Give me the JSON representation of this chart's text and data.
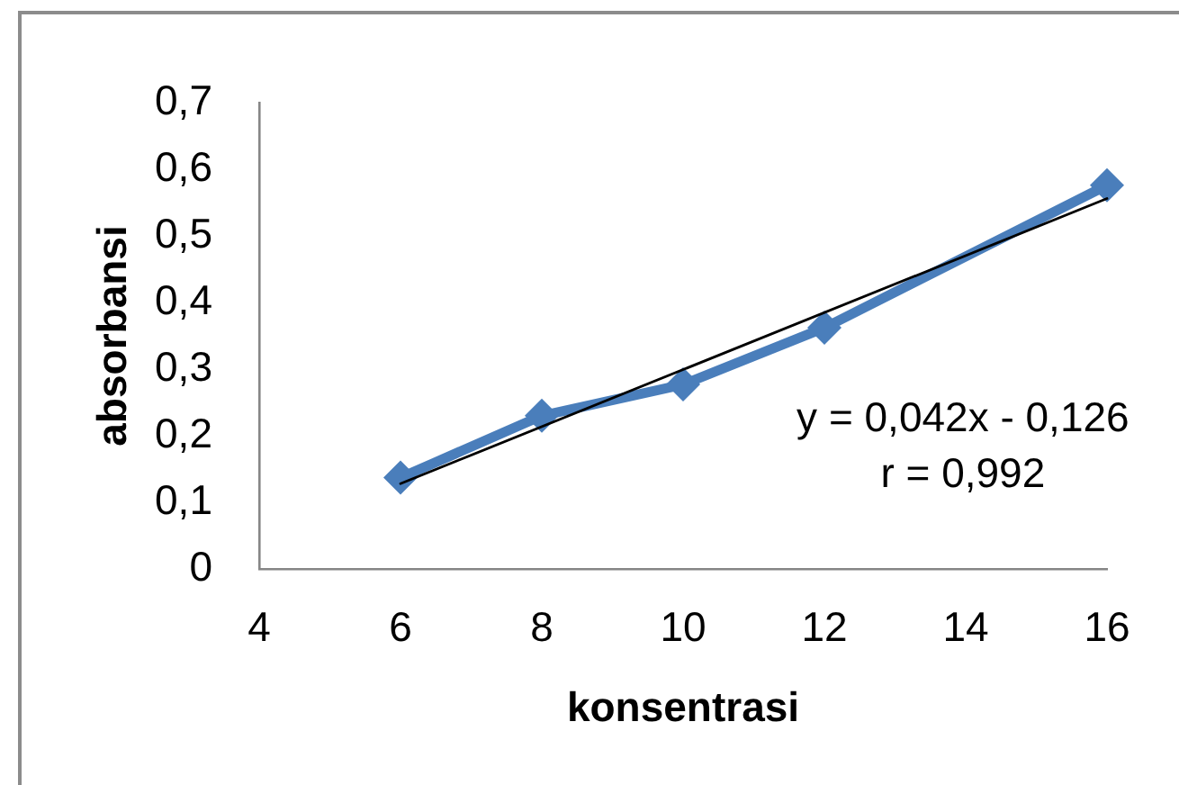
{
  "chart_data": {
    "type": "line",
    "xlabel": "konsentrasi",
    "ylabel": "absorbansi",
    "x": [
      6,
      8,
      10,
      12,
      16
    ],
    "series": [
      {
        "color": "#4a7ebb",
        "marker": "diamond",
        "values": [
          0.137,
          0.23,
          0.277,
          0.362,
          0.576
        ]
      },
      {
        "type": "line",
        "x": [
          6,
          16
        ],
        "color": "#000000",
        "marker": "none",
        "values": [
          0.128,
          0.556
        ]
      }
    ],
    "xlim": [
      4,
      16
    ],
    "xticks": [
      4,
      6,
      8,
      10,
      12,
      14,
      16
    ],
    "ylim": [
      0,
      0.7
    ],
    "yticks": [
      0,
      {
        "value": 0.1,
        "label": "0,1"
      },
      {
        "value": 0.2,
        "label": "0,2"
      },
      {
        "value": 0.3,
        "label": "0,3"
      },
      {
        "value": 0.4,
        "label": "0,4"
      },
      {
        "value": 0.5,
        "label": "0,5"
      },
      {
        "value": 0.6,
        "label": "0,6"
      },
      {
        "value": 0.7,
        "label": "0,7"
      }
    ],
    "annotations": [
      "y = 0,042x - 0,126",
      "r = 0,992"
    ],
    "grid": false,
    "legend": false,
    "line_style": "solid"
  }
}
